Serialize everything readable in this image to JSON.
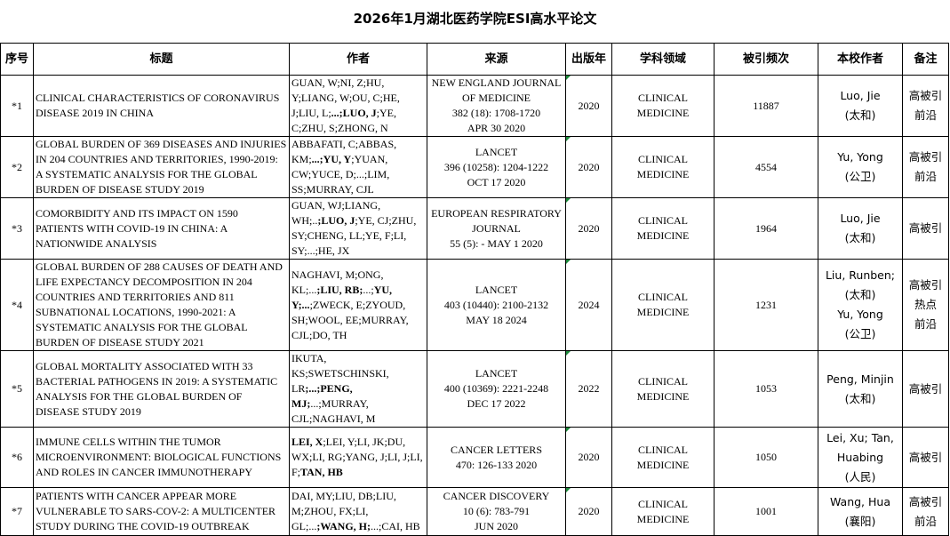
{
  "title": "2026年1月湖北医药学院ESI高水平论文",
  "headers": [
    "序号",
    "标题",
    "作者",
    "来源",
    "出版年",
    "学科领域",
    "被引频次",
    "本校作者",
    "备注"
  ],
  "rows": [
    {
      "no": "*1",
      "title": "CLINICAL CHARACTERISTICS OF CORONAVIRUS DISEASE 2019 IN CHINA",
      "authors": [
        {
          "t": "GUAN, W;NI, Z;HU, Y;LIANG, W;OU, C;HE, J;LIU, L;"
        },
        {
          "t": "...;LUO, J",
          "b": true
        },
        {
          "t": ";YE, C;ZHU, S;ZHONG, N"
        }
      ],
      "source": [
        "NEW ENGLAND JOURNAL OF MEDICINE",
        "382 (18): 1708-1720",
        "APR 30 2020"
      ],
      "year": "2020",
      "field": "CLINICAL MEDICINE",
      "cites": "11887",
      "school_authors": [
        "Luo, Jie",
        "(太和)"
      ],
      "remarks": [
        "高被引",
        "前沿"
      ]
    },
    {
      "no": "*2",
      "title": "GLOBAL BURDEN OF 369 DISEASES AND INJURIES IN 204 COUNTRIES AND TERRITORIES, 1990-2019: A SYSTEMATIC ANALYSIS FOR THE GLOBAL BURDEN OF DISEASE STUDY 2019",
      "authors": [
        {
          "t": "ABBAFATI, C;ABBAS, KM;"
        },
        {
          "t": "...;YU, Y",
          "b": true
        },
        {
          "t": ";YUAN, CW;YUCE, D;...;LIM, SS;MURRAY, CJL"
        }
      ],
      "source": [
        "LANCET",
        "396 (10258): 1204-1222",
        "OCT 17 2020"
      ],
      "year": "2020",
      "field": "CLINICAL MEDICINE",
      "cites": "4554",
      "school_authors": [
        "Yu, Yong",
        "(公卫)"
      ],
      "remarks": [
        "高被引",
        "前沿"
      ]
    },
    {
      "no": "*3",
      "title": "COMORBIDITY AND ITS IMPACT ON 1590 PATIENTS WITH COVID-19 IN CHINA: A NATIONWIDE ANALYSIS",
      "authors": [
        {
          "t": "GUAN, WJ;LIANG, WH;.."
        },
        {
          "t": ";LUO, J",
          "b": true
        },
        {
          "t": ";YE, CJ;ZHU, SY;CHENG, LL;YE, F;LI, SY;...;HE, JX"
        }
      ],
      "source": [
        "EUROPEAN RESPIRATORY JOURNAL",
        "55 (5): - MAY 1 2020"
      ],
      "year": "2020",
      "field": "CLINICAL MEDICINE",
      "cites": "1964",
      "school_authors": [
        "Luo, Jie",
        "(太和)"
      ],
      "remarks": [
        "高被引"
      ]
    },
    {
      "no": "*4",
      "title": "GLOBAL BURDEN OF 288 CAUSES OF DEATH AND LIFE EXPECTANCY DECOMPOSITION IN 204 COUNTRIES AND TERRITORIES AND 811 SUBNATIONAL LOCATIONS, 1990-2021: A SYSTEMATIC ANALYSIS FOR THE GLOBAL BURDEN OF DISEASE STUDY 2021",
      "authors": [
        {
          "t": "NAGHAVI, M;ONG, KL;..."
        },
        {
          "t": ";LIU, RB;",
          "b": true
        },
        {
          "t": "...;"
        },
        {
          "t": "YU, Y;...",
          "b": true
        },
        {
          "t": ";ZWECK, E;ZYOUD, SH;WOOL, EE;MURRAY, CJL;DO, TH"
        }
      ],
      "source": [
        "LANCET",
        "403 (10440): 2100-2132",
        "MAY 18 2024"
      ],
      "year": "2024",
      "field": "CLINICAL MEDICINE",
      "cites": "1231",
      "school_authors": [
        "Liu, Runben;",
        "(太和)",
        "Yu, Yong",
        "(公卫)"
      ],
      "remarks": [
        "高被引",
        "热点",
        "前沿"
      ]
    },
    {
      "no": "*5",
      "title": "GLOBAL MORTALITY ASSOCIATED WITH 33 BACTERIAL PATHOGENS IN 2019: A SYSTEMATIC ANALYSIS FOR THE GLOBAL BURDEN OF DISEASE STUDY 2019",
      "authors": [
        {
          "t": "IKUTA, KS;SWETSCHINSKI, LR"
        },
        {
          "t": ";...;PENG, MJ;",
          "b": true
        },
        {
          "t": "...;MURRAY, CJL;NAGHAVI, M"
        }
      ],
      "source": [
        "LANCET",
        "400 (10369): 2221-2248",
        "DEC 17 2022"
      ],
      "year": "2022",
      "field": "CLINICAL MEDICINE",
      "cites": "1053",
      "school_authors": [
        "Peng, Minjin",
        "(太和)"
      ],
      "remarks": [
        "高被引"
      ]
    },
    {
      "no": "*6",
      "title": "IMMUNE CELLS WITHIN THE TUMOR MICROENVIRONMENT: BIOLOGICAL FUNCTIONS AND ROLES IN CANCER IMMUNOTHERAPY",
      "authors": [
        {
          "t": "LEI, X",
          "b": true
        },
        {
          "t": ";LEI, Y;LI, JK;DU, WX;LI, RG;YANG, J;LI, J;LI, F;"
        },
        {
          "t": "TAN, HB",
          "b": true
        }
      ],
      "source": [
        "CANCER LETTERS",
        "470: 126-133 2020"
      ],
      "year": "2020",
      "field": "CLINICAL MEDICINE",
      "cites": "1050",
      "school_authors": [
        "Lei, Xu; Tan,",
        "Huabing",
        "(人民)"
      ],
      "remarks": [
        "高被引"
      ]
    },
    {
      "no": "*7",
      "title": "PATIENTS WITH CANCER APPEAR MORE VULNERABLE TO SARS-COV-2: A MULTICENTER STUDY DURING THE COVID-19 OUTBREAK",
      "authors": [
        {
          "t": "DAI, MY;LIU, DB;LIU, M;ZHOU, FX;LI, GL;..."
        },
        {
          "t": ";WANG, H;",
          "b": true
        },
        {
          "t": "...;CAI, HB"
        }
      ],
      "source": [
        "CANCER DISCOVERY",
        "10 (6): 783-791",
        "JUN 2020"
      ],
      "year": "2020",
      "field": "CLINICAL MEDICINE",
      "cites": "1001",
      "school_authors": [
        "Wang, Hua",
        "(襄阳)"
      ],
      "remarks": [
        "高被引",
        "前沿"
      ]
    }
  ]
}
